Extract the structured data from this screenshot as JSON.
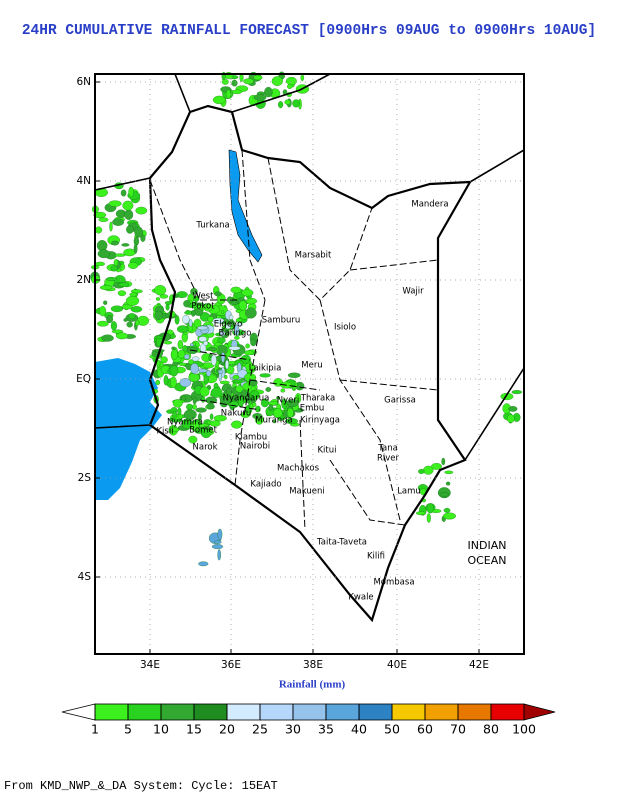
{
  "title": "24HR CUMULATIVE RAINFALL FORECAST [0900Hrs 09AUG to 0900Hrs 10AUG]",
  "map": {
    "lat_labels": [
      "6N",
      "4N",
      "2N",
      "EQ",
      "2S",
      "4S"
    ],
    "lon_labels": [
      "34E",
      "36E",
      "38E",
      "40E",
      "42E"
    ],
    "places": [
      "Turkana",
      "Marsabit",
      "Mandera",
      "Wajir",
      "West",
      "Pokot",
      "Samburu",
      "Isiolo",
      "Elgeyo",
      "Baringo",
      "Laikipia",
      "Meru",
      "Nyandarua",
      "Nyeri",
      "Tharaka",
      "Embu",
      "Kirinyaga",
      "Muranga",
      "Nakuru",
      "Bomet",
      "Narok",
      "Kiambu",
      "Nairobi",
      "Kisii",
      "Nyamira",
      "Garissa",
      "Kitui",
      "Machakos",
      "Tana",
      "River",
      "Kajiado",
      "Makueni",
      "Lamu",
      "Taita-Taveta",
      "Kilifi",
      "Mombasa",
      "Kwale"
    ],
    "ocean_label": [
      "INDIAN",
      "OCEAN"
    ]
  },
  "colorbar": {
    "label": "Rainfall (mm)",
    "levels": [
      1,
      5,
      10,
      15,
      20,
      25,
      30,
      35,
      40,
      50,
      60,
      70,
      80,
      100
    ],
    "colors": [
      "#3cf01e",
      "#28d21e",
      "#32aa32",
      "#1e8c1e",
      "#d2ebff",
      "#b4d7fa",
      "#96c3eb",
      "#5aa5dc",
      "#2d82c3",
      "#f5c800",
      "#f0a000",
      "#e67800",
      "#e60000"
    ],
    "under_color": "#ffffff",
    "over_color": "#a00000"
  },
  "footer": "From KMD_NWP_&_DA System: Cycle: 15EAT"
}
